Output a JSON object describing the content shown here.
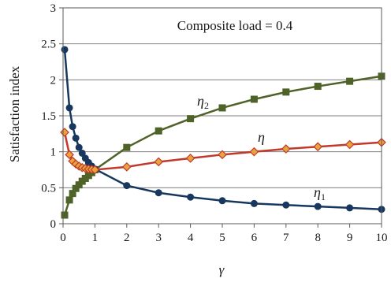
{
  "chart_data": {
    "type": "line",
    "title": "",
    "annotation": "Composite load = 0.4",
    "xlabel": "γ",
    "ylabel": "Satisfaction index",
    "xlim": [
      0,
      10
    ],
    "ylim": [
      0,
      3
    ],
    "x_ticks": [
      0,
      1,
      2,
      3,
      4,
      5,
      6,
      7,
      8,
      9,
      10
    ],
    "y_ticks": [
      0,
      0.5,
      1,
      1.5,
      2,
      2.5,
      3
    ],
    "grid": "horizontal",
    "legend": "none",
    "x": [
      0.05,
      0.2,
      0.3,
      0.4,
      0.5,
      0.6,
      0.7,
      0.8,
      0.9,
      1,
      2,
      3,
      4,
      5,
      6,
      7,
      8,
      9,
      10
    ],
    "series": [
      {
        "name": "η₁",
        "label_main": "η",
        "label_sub": "1",
        "color": "#17375e",
        "marker": "circle",
        "values": [
          2.42,
          1.61,
          1.35,
          1.19,
          1.06,
          0.98,
          0.91,
          0.85,
          0.8,
          0.76,
          0.53,
          0.43,
          0.37,
          0.32,
          0.28,
          0.26,
          0.24,
          0.22,
          0.2
        ]
      },
      {
        "name": "η₂",
        "label_main": "η",
        "label_sub": "2",
        "color": "#4f6228",
        "marker": "square",
        "values": [
          0.12,
          0.33,
          0.42,
          0.49,
          0.54,
          0.59,
          0.63,
          0.67,
          0.71,
          0.75,
          1.06,
          1.29,
          1.46,
          1.61,
          1.73,
          1.83,
          1.91,
          1.98,
          2.05
        ]
      },
      {
        "name": "η",
        "label_main": "η",
        "label_sub": "",
        "color": "#c0392b",
        "marker_fill": "#e8a33d",
        "marker": "diamond",
        "values": [
          1.27,
          0.96,
          0.87,
          0.83,
          0.8,
          0.78,
          0.77,
          0.76,
          0.755,
          0.75,
          0.79,
          0.86,
          0.91,
          0.96,
          1.0,
          1.04,
          1.07,
          1.1,
          1.13
        ]
      }
    ]
  }
}
